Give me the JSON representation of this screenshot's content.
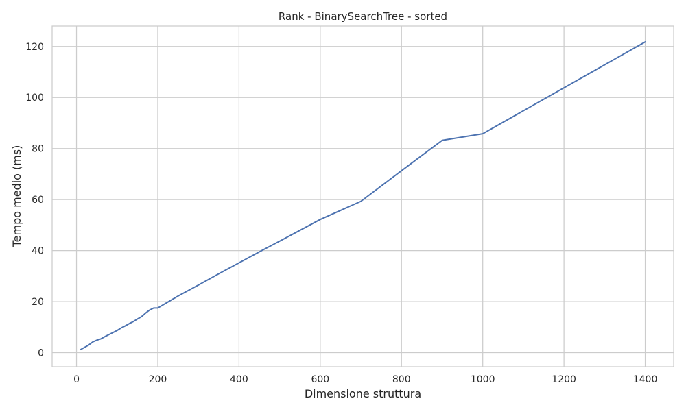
{
  "chart_data": {
    "type": "line",
    "title": "Rank - BinarySearchTree - sorted",
    "xlabel": "Dimensione struttura",
    "ylabel": "Tempo medio (ms)",
    "xlim": [
      -60,
      1470
    ],
    "ylim": [
      -5.5,
      128
    ],
    "xticks": [
      0,
      200,
      400,
      600,
      800,
      1000,
      1200,
      1400
    ],
    "yticks": [
      0,
      20,
      40,
      60,
      80,
      100,
      120
    ],
    "grid": true,
    "legend": "none",
    "series": [
      {
        "color": "#4c72b0",
        "x": [
          10,
          20,
          30,
          40,
          50,
          60,
          70,
          80,
          90,
          100,
          110,
          120,
          130,
          140,
          150,
          160,
          170,
          180,
          190,
          200,
          250,
          300,
          350,
          400,
          450,
          500,
          600,
          700,
          800,
          900,
          1000,
          1400
        ],
        "y": [
          1.2,
          2.1,
          3.0,
          4.2,
          4.9,
          5.4,
          6.3,
          7.1,
          7.9,
          8.7,
          9.7,
          10.5,
          11.4,
          12.2,
          13.2,
          14.1,
          15.5,
          16.7,
          17.5,
          17.5,
          22.2,
          26.5,
          30.9,
          35.2,
          39.5,
          43.7,
          52.2,
          59.3,
          71.3,
          83.2,
          85.8,
          121.8
        ]
      }
    ]
  }
}
